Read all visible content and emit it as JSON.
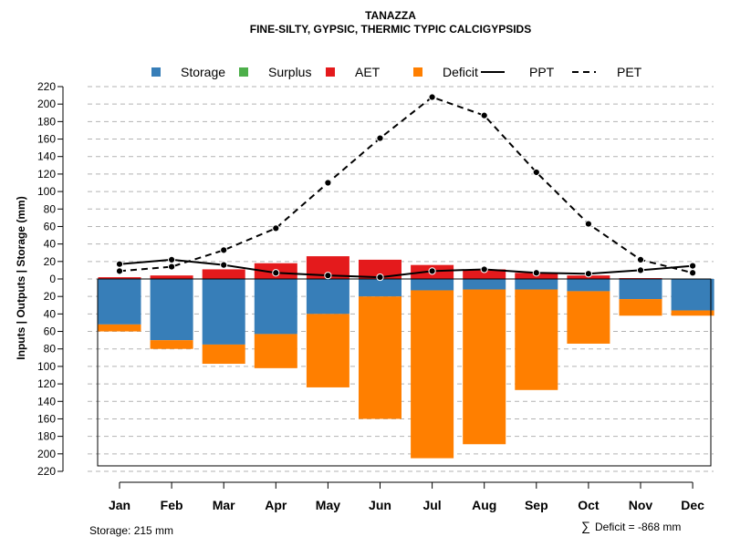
{
  "chart_data": {
    "type": "bar",
    "title": "TANAZZA",
    "subtitle": "FINE-SILTY, GYPSIC, THERMIC TYPIC CALCIGYPSIDS",
    "ylabel": "Inputs | Outputs | Storage     (mm)",
    "xlabel": "",
    "ylim": [
      -220,
      220
    ],
    "yticks": [
      220,
      200,
      180,
      160,
      140,
      120,
      100,
      80,
      60,
      40,
      20,
      0,
      -20,
      -40,
      -60,
      -80,
      -100,
      -120,
      -140,
      -160,
      -180,
      -200,
      -220
    ],
    "ytick_labels": [
      "220",
      "200",
      "180",
      "160",
      "140",
      "120",
      "100",
      "80",
      "60",
      "40",
      "20",
      "0",
      "20",
      "40",
      "60",
      "80",
      "100",
      "120",
      "140",
      "160",
      "180",
      "200",
      "220"
    ],
    "categories": [
      "Jan",
      "Feb",
      "Mar",
      "Apr",
      "May",
      "Jun",
      "Jul",
      "Aug",
      "Sep",
      "Oct",
      "Nov",
      "Dec"
    ],
    "legend": [
      {
        "name": "Storage",
        "kind": "box",
        "color": "#377eb8"
      },
      {
        "name": "Surplus",
        "kind": "box",
        "color": "#4daf4a"
      },
      {
        "name": "AET",
        "kind": "box",
        "color": "#e41a1c"
      },
      {
        "name": "Deficit",
        "kind": "box",
        "color": "#ff7f00"
      },
      {
        "name": "PPT",
        "kind": "solid",
        "color": "#000000"
      },
      {
        "name": "PET",
        "kind": "dashed",
        "color": "#000000"
      }
    ],
    "series": [
      {
        "name": "AET",
        "color": "#e41a1c",
        "values": [
          2,
          4,
          11,
          18,
          26,
          22,
          16,
          11,
          7,
          4,
          1,
          0
        ]
      },
      {
        "name": "Surplus",
        "color": "#4daf4a",
        "values": [
          0,
          0,
          0,
          0,
          0,
          0,
          0,
          0,
          0,
          0,
          0,
          0
        ]
      },
      {
        "name": "Storage",
        "color": "#377eb8",
        "values": [
          -52,
          -70,
          -75,
          -63,
          -40,
          -20,
          -13,
          -12,
          -12,
          -14,
          -23,
          -36
        ]
      },
      {
        "name": "Deficit",
        "color": "#ff7f00",
        "values": [
          -8,
          -10,
          -22,
          -39,
          -84,
          -140,
          -192,
          -177,
          -115,
          -60,
          -19,
          -6
        ]
      },
      {
        "name": "PPT",
        "color": "#000000",
        "style": "solid",
        "values": [
          17,
          22,
          16,
          7,
          4,
          2,
          9,
          11,
          7,
          6,
          10,
          15
        ]
      },
      {
        "name": "PET",
        "color": "#000000",
        "style": "dashed",
        "values": [
          9,
          14,
          33,
          58,
          110,
          161,
          208,
          187,
          122,
          63,
          22,
          7
        ]
      }
    ],
    "grid": true,
    "legend_position": "top"
  },
  "footer": {
    "storage_text": "Storage: 215 mm",
    "deficit_symbol": "∑",
    "deficit_text": "Deficit = -868 mm"
  }
}
